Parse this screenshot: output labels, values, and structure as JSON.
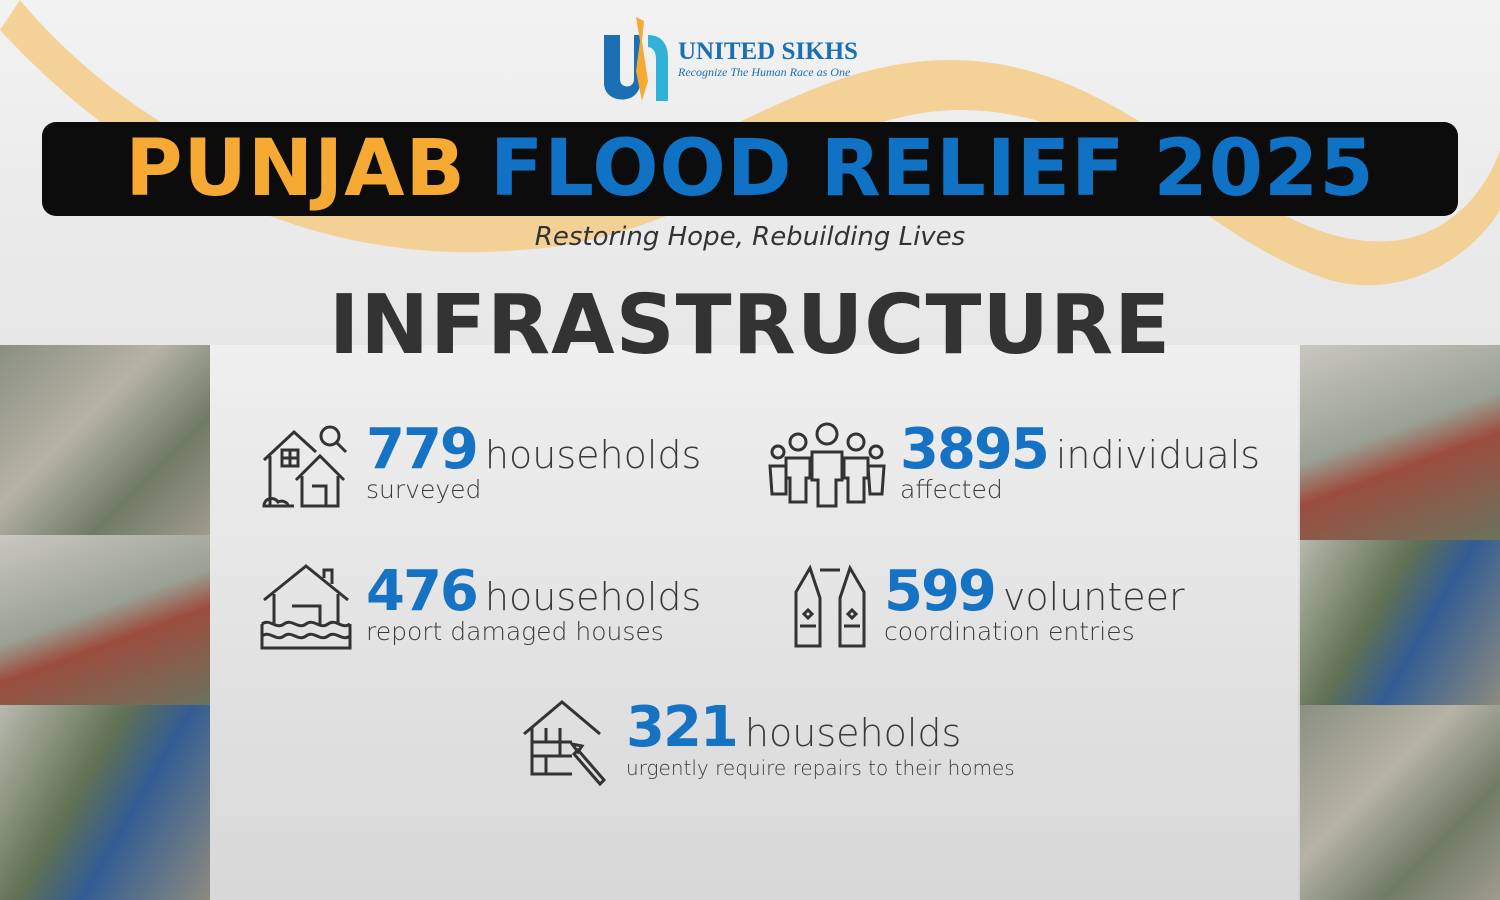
{
  "logo": {
    "name": "UNITED SIKHS",
    "tagline": "Recognize The Human Race as One"
  },
  "title": {
    "part1": "PUNJAB",
    "part2": "FLOOD RELIEF 2025"
  },
  "subtitle": "Restoring Hope, Rebuilding Lives",
  "section": "INFRASTRUCTURE",
  "colors": {
    "accent_orange": "#f6aa33",
    "accent_blue": "#1672c2",
    "title_bar": "#0c0c0c"
  },
  "stats": [
    {
      "icon": "house-search-icon",
      "number": "779",
      "unit": "households",
      "detail": "surveyed"
    },
    {
      "icon": "people-group-icon",
      "number": "3895",
      "unit": "individuals",
      "detail": "affected"
    },
    {
      "icon": "flooded-house-icon",
      "number": "476",
      "unit": "households",
      "detail": "report damaged houses"
    },
    {
      "icon": "volunteer-vest-icon",
      "number": "599",
      "unit": "volunteer",
      "detail": "coordination entries"
    },
    {
      "icon": "house-repair-icon",
      "number": "321",
      "unit": "households",
      "detail": "urgently require repairs to their homes"
    }
  ]
}
